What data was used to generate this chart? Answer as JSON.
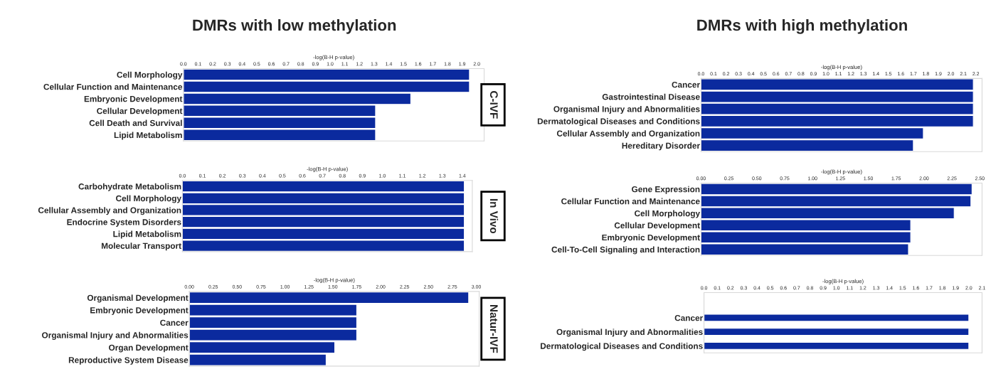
{
  "chart_data": [
    {
      "type": "bar",
      "orientation": "horizontal",
      "title": "DMRs with low methylation",
      "xlabel": "-log(B-H p-value)",
      "annotations": [
        "C-IVF"
      ],
      "color": "#0b2a9e",
      "categories": [
        "Cell Morphology",
        "Cellular Function and Maintenance",
        "Embryonic Development",
        "Cellular Development",
        "Cell Death and Survival",
        "Lipid Metabolism"
      ],
      "values": [
        1.95,
        1.95,
        1.55,
        1.31,
        1.31,
        1.31
      ],
      "xlim": [
        0,
        2.05
      ],
      "xticks": [
        {
          "value": 0,
          "label": "0.0"
        },
        0.1,
        0.2,
        0.3,
        0.4,
        0.5,
        0.6,
        0.7,
        0.8,
        0.9,
        {
          "value": 1,
          "label": "1.0"
        },
        1.1,
        1.2,
        1.3,
        1.4,
        1.5,
        1.6,
        1.7,
        1.8,
        1.9,
        {
          "value": 2,
          "label": "2.0"
        }
      ]
    },
    {
      "type": "bar",
      "orientation": "horizontal",
      "title": "DMRs with high methylation",
      "xlabel": "-log(B-H p-value)",
      "color": "#0b2a9e",
      "categories": [
        "Cancer",
        "Gastrointestinal Disease",
        "Organismal Injury and Abnormalities",
        "Dermatological Diseases and Conditions",
        "Cellular Assembly and Organization",
        "Hereditary Disorder"
      ],
      "values": [
        2.18,
        2.18,
        2.18,
        2.18,
        1.78,
        1.7
      ],
      "xlim": [
        0,
        2.25
      ],
      "xticks": [
        {
          "value": 0,
          "label": "0.0"
        },
        0.1,
        0.2,
        0.3,
        0.4,
        0.5,
        0.6,
        0.7,
        0.8,
        0.9,
        {
          "value": 1,
          "label": "1.0"
        },
        1.1,
        1.2,
        1.3,
        1.4,
        1.5,
        1.6,
        1.7,
        1.8,
        1.9,
        {
          "value": 2,
          "label": "2.0"
        },
        2.1,
        2.2
      ]
    },
    {
      "type": "bar",
      "orientation": "horizontal",
      "xlabel": "-log(B-H p-value)",
      "annotations": [
        "In Vivo"
      ],
      "color": "#0b2a9e",
      "categories": [
        "Carbohydrate Metabolism",
        "Cell Morphology",
        "Cellular Assembly and Organization",
        "Endocrine System Disorders",
        "Lipid Metabolism",
        "Molecular Transport"
      ],
      "values": [
        1.41,
        1.41,
        1.41,
        1.41,
        1.41,
        1.41
      ],
      "xlim": [
        0,
        1.45
      ],
      "xticks": [
        {
          "value": 0,
          "label": "0.0"
        },
        0.1,
        0.2,
        0.3,
        0.4,
        0.5,
        0.6,
        0.7,
        0.8,
        0.9,
        {
          "value": 1,
          "label": "1.0"
        },
        1.1,
        1.2,
        1.3,
        1.4
      ]
    },
    {
      "type": "bar",
      "orientation": "horizontal",
      "xlabel": "-log(B-H p-value)",
      "color": "#0b2a9e",
      "categories": [
        "Gene Expression",
        "Cellular Function and Maintenance",
        "Cell Morphology",
        "Cellular Development",
        "Embryonic Development",
        "Cell-To-Cell Signaling and Interaction"
      ],
      "values": [
        2.43,
        2.42,
        2.27,
        1.88,
        1.88,
        1.86
      ],
      "xlim": [
        0,
        2.52
      ],
      "xticks": [
        {
          "value": 0,
          "label": "0.00"
        },
        0.25,
        {
          "value": 0.5,
          "label": "0.50"
        },
        0.75,
        {
          "value": 1,
          "label": "1.00"
        },
        1.25,
        {
          "value": 1.5,
          "label": "1.50"
        },
        1.75,
        {
          "value": 2,
          "label": "2.00"
        },
        2.25,
        {
          "value": 2.5,
          "label": "2.50"
        }
      ]
    },
    {
      "type": "bar",
      "orientation": "horizontal",
      "xlabel": "-log(B-H p-value)",
      "annotations": [
        "Natur-IVF"
      ],
      "color": "#0b2a9e",
      "categories": [
        "Organismal Development",
        "Embryonic Development",
        "Cancer",
        "Organismal Injury and Abnormalities",
        "Organ Development",
        "Reproductive System Disease"
      ],
      "values": [
        2.92,
        1.75,
        1.75,
        1.75,
        1.52,
        1.43
      ],
      "xlim": [
        0,
        3.03
      ],
      "xticks": [
        {
          "value": 0,
          "label": "0.00"
        },
        0.25,
        {
          "value": 0.5,
          "label": "0.50"
        },
        0.75,
        {
          "value": 1,
          "label": "1.00"
        },
        1.25,
        {
          "value": 1.5,
          "label": "1.50"
        },
        1.75,
        {
          "value": 2,
          "label": "2.00"
        },
        2.25,
        {
          "value": 2.5,
          "label": "2.50"
        },
        2.75,
        {
          "value": 3,
          "label": "3.00"
        }
      ]
    },
    {
      "type": "bar",
      "orientation": "horizontal",
      "xlabel": "-log(B-H p-value)",
      "color": "#0b2a9e",
      "categories": [
        "Cancer",
        "Organismal Injury and Abnormalities",
        "Dermatological Diseases and Conditions"
      ],
      "values": [
        2.0,
        2.0,
        2.0
      ],
      "xlim": [
        0,
        2.1
      ],
      "xticks": [
        {
          "value": 0,
          "label": "0.0"
        },
        0.1,
        0.2,
        0.3,
        0.4,
        0.5,
        0.6,
        0.7,
        0.8,
        0.9,
        {
          "value": 1,
          "label": "1.0"
        },
        1.1,
        1.2,
        1.3,
        1.4,
        1.5,
        1.6,
        1.7,
        1.8,
        1.9,
        {
          "value": 2,
          "label": "2.0"
        },
        2.1
      ]
    }
  ]
}
